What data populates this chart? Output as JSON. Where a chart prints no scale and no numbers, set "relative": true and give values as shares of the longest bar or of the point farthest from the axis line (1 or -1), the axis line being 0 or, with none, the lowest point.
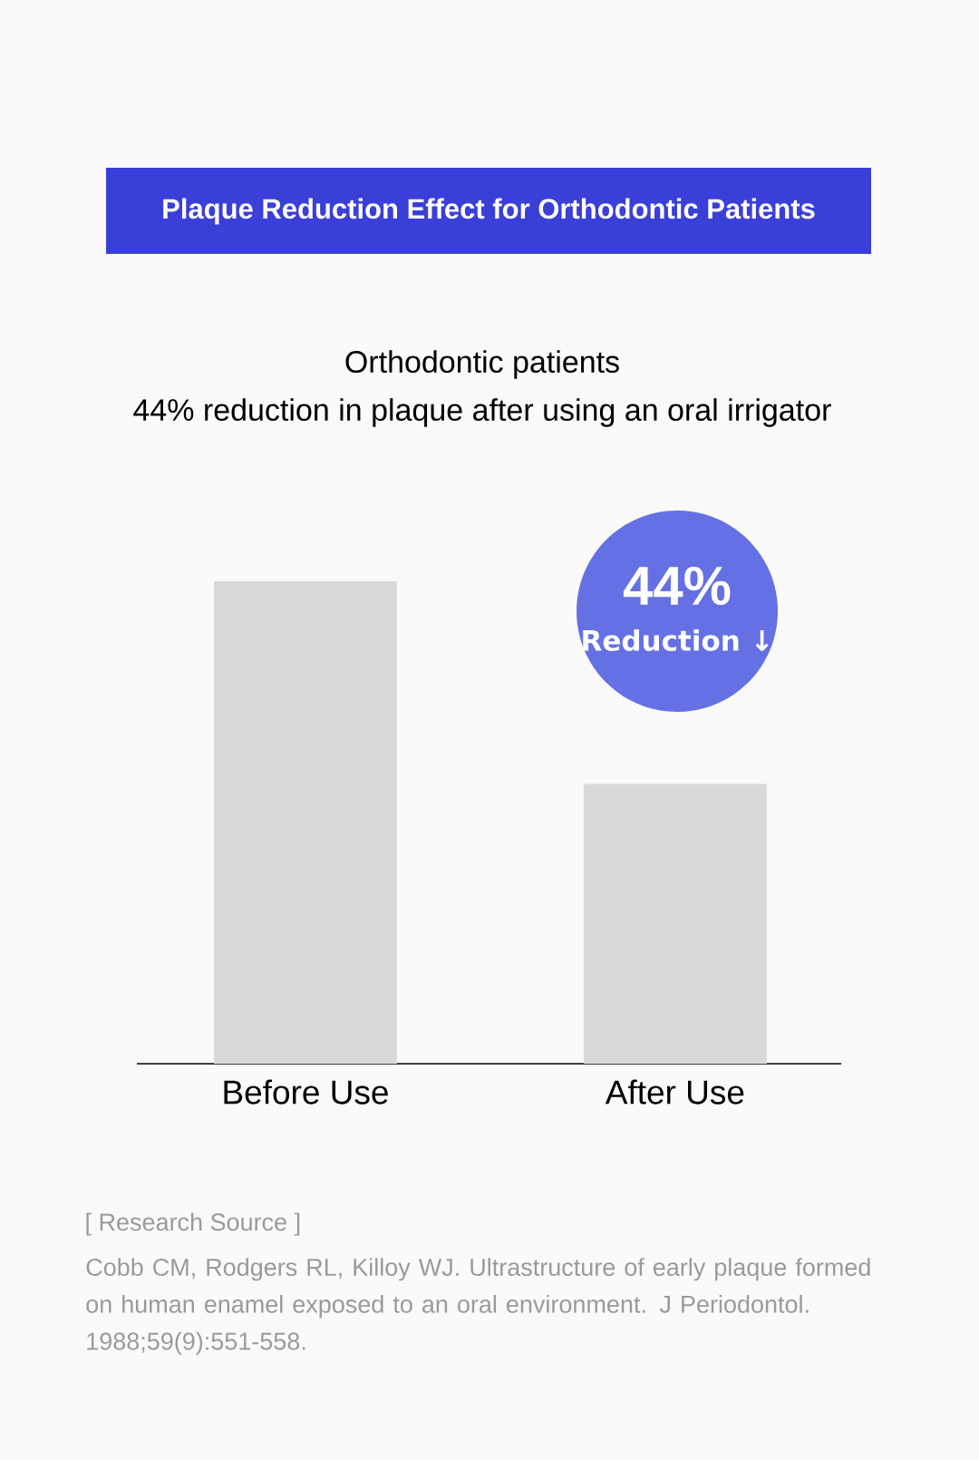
{
  "chart_data": {
    "type": "bar",
    "title": "Plaque Reduction Effect for Orthodontic Patients",
    "subtitle": "Orthodontic patients",
    "categories": [
      "Before Use",
      "After Use"
    ],
    "values": [
      1,
      0.58
    ],
    "color": "#d9d9d9",
    "relative": true,
    "annotations": [
      "44% reduction in plaque after using an oral irrigator",
      "44%",
      "Reduction ↓",
      "[ Research Source ]",
      "Cobb CM, Rodgers RL, Killoy WJ. Ultrastructure of early plaque formed on human enamel exposed to an oral environment. J Periodontol. 1988;59(9):551-558."
    ]
  }
}
